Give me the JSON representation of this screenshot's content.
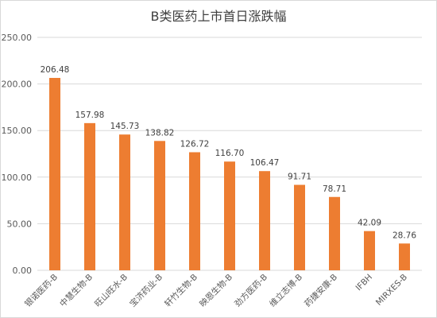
{
  "chart_data": {
    "type": "bar",
    "title": "B类医药上市首日涨跌幅",
    "categories": [
      "银诺医药-B",
      "中慧生物-B",
      "旺山旺水-B",
      "宝济药业-B",
      "轩竹生物-B",
      "映恩生物-B",
      "劲方医药-B",
      "维立志博-B",
      "药捷安康-B",
      "IFBH",
      "MIRXES-B"
    ],
    "values": [
      206.48,
      157.98,
      145.73,
      138.82,
      126.72,
      116.7,
      106.47,
      91.71,
      78.71,
      42.09,
      28.76
    ],
    "data_labels": [
      "206.48",
      "157.98",
      "145.73",
      "138.82",
      "126.72",
      "116.70",
      "106.47",
      "91.71",
      "78.71",
      "42.09",
      "28.76"
    ],
    "y_ticks": [
      "0.00",
      "50.00",
      "100.00",
      "150.00",
      "200.00",
      "250.00"
    ],
    "ylim": [
      0,
      250
    ],
    "xlabel": "",
    "ylabel": "",
    "grid": true,
    "legend": "none",
    "bar_color": "#ed7d31",
    "grid_color": "#d9d9d9"
  }
}
